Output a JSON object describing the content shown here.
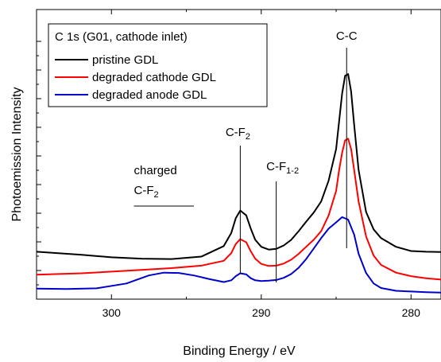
{
  "chart_data": {
    "type": "line",
    "xlabel": "Binding Energy / eV",
    "ylabel": "Photoemission Intensity",
    "xlim": [
      305,
      278
    ],
    "x_reversed": true,
    "y_tick_labels_shown": false,
    "xticks": [
      300,
      290,
      280
    ],
    "legend": {
      "title": "C 1s  (G01, cathode inlet)",
      "placement": "top-left"
    },
    "series": [
      {
        "name": "pristine GDL",
        "color": "#000000",
        "x": [
          305,
          302,
          300,
          298,
          296,
          294,
          292.5,
          292,
          291.7,
          291.4,
          291.0,
          290.7,
          290.4,
          290,
          289.5,
          289,
          288.5,
          288,
          287.5,
          287,
          286.5,
          286,
          285.5,
          285,
          284.8,
          284.6,
          284.4,
          284.2,
          284.0,
          283.8,
          283.5,
          283,
          282.5,
          282,
          281,
          280,
          279,
          278
        ],
        "y": [
          10.6,
          9.7,
          9.0,
          8.6,
          8.5,
          9.2,
          12.2,
          16.0,
          20.2,
          22.4,
          21.0,
          17.2,
          14.0,
          12.0,
          11.2,
          11.4,
          12.4,
          14.0,
          16.5,
          19.2,
          21.8,
          25.0,
          31.0,
          40.0,
          48.0,
          56.0,
          61.0,
          61.5,
          56.5,
          47.0,
          34.0,
          22.0,
          17.0,
          14.5,
          12.0,
          10.8,
          10.6,
          10.5
        ]
      },
      {
        "name": "degraded cathode GDL",
        "color": "#ff0000",
        "x": [
          305,
          302,
          300,
          298,
          296,
          294,
          292.5,
          292,
          291.7,
          291.4,
          291.0,
          290.7,
          290.4,
          290,
          289.5,
          289,
          288.5,
          288,
          287.5,
          287,
          286.5,
          286,
          285.5,
          285,
          284.8,
          284.6,
          284.4,
          284.2,
          284.0,
          283.8,
          283.5,
          283,
          282.5,
          282,
          281,
          280,
          279,
          278
        ],
        "y": [
          4.0,
          4.4,
          4.9,
          5.4,
          5.9,
          6.6,
          8.0,
          10.2,
          12.8,
          14.2,
          13.3,
          10.7,
          8.6,
          7.1,
          6.5,
          6.6,
          7.2,
          8.3,
          10.0,
          12.0,
          14.0,
          16.5,
          21.0,
          28.0,
          34.0,
          39.0,
          42.5,
          43.0,
          40.0,
          34.0,
          25.0,
          15.0,
          9.5,
          6.8,
          4.6,
          3.6,
          3.0,
          2.6
        ]
      },
      {
        "name": "degraded anode GDL",
        "color": "#0000cc",
        "x": [
          305,
          303,
          301,
          299,
          297.5,
          296.5,
          295.5,
          294.5,
          293.5,
          292.5,
          292,
          291.7,
          291.4,
          291.0,
          290.7,
          290.4,
          290,
          289.5,
          289,
          288.5,
          288,
          287.5,
          287,
          286.5,
          286,
          285.5,
          285,
          284.6,
          284.2,
          283.8,
          283.5,
          283,
          282.5,
          282,
          281,
          280,
          279,
          278
        ],
        "y": [
          0.0,
          -0.1,
          0.1,
          1.5,
          3.8,
          4.6,
          4.5,
          3.8,
          2.8,
          1.9,
          2.4,
          3.6,
          4.4,
          4.1,
          3.0,
          2.4,
          2.2,
          2.3,
          2.5,
          3.1,
          4.2,
          6.0,
          8.5,
          11.5,
          14.5,
          17.2,
          19.0,
          20.5,
          19.8,
          15.5,
          10.0,
          4.5,
          1.5,
          0.2,
          -0.6,
          -0.8,
          -1.0,
          -1.1
        ]
      }
    ],
    "annotations": [
      {
        "text": "C-C",
        "x": 284.3
      },
      {
        "text": "C-F",
        "subscript": "2",
        "x": 291.4
      },
      {
        "text": "C-F",
        "subscript": "1-2",
        "x": 289.0
      },
      {
        "text": "charged",
        "line2": "C-F",
        "line2_subscript": "2",
        "x_range": [
          298.5,
          294.5
        ]
      }
    ]
  }
}
